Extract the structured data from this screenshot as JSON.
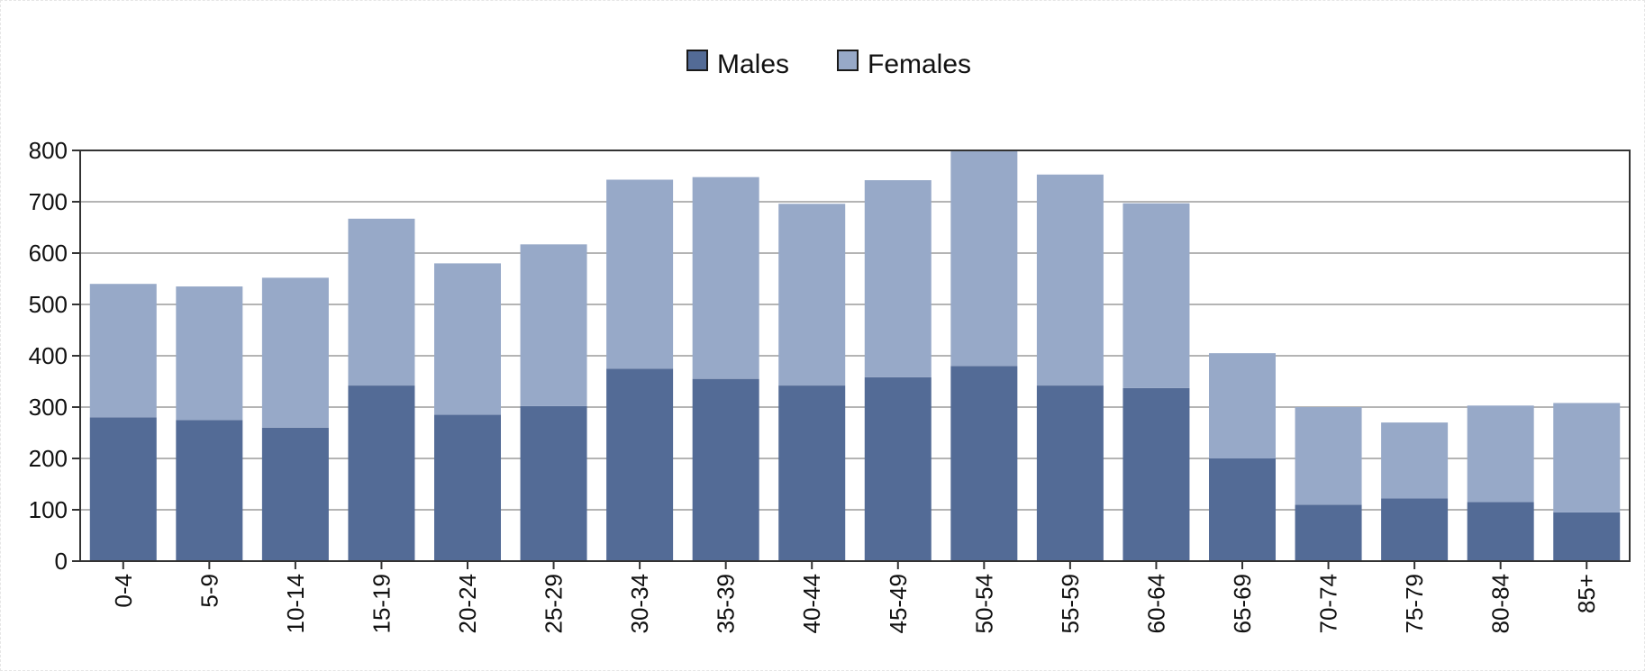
{
  "chart_data": {
    "type": "bar",
    "stacked": true,
    "title": "",
    "xlabel": "",
    "ylabel": "",
    "categories": [
      "0-4",
      "5-9",
      "10-14",
      "15-19",
      "20-24",
      "25-29",
      "30-34",
      "35-39",
      "40-44",
      "45-49",
      "50-54",
      "55-59",
      "60-64",
      "65-69",
      "70-74",
      "75-79",
      "80-84",
      "85+"
    ],
    "series": [
      {
        "name": "Males",
        "color": "#536b96",
        "values": [
          280,
          275,
          260,
          342,
          285,
          302,
          375,
          355,
          342,
          358,
          380,
          342,
          337,
          200,
          110,
          122,
          115,
          95
        ]
      },
      {
        "name": "Females",
        "color": "#97a9c8",
        "values": [
          260,
          260,
          292,
          325,
          295,
          315,
          368,
          393,
          354,
          384,
          420,
          411,
          360,
          205,
          190,
          148,
          188,
          213
        ]
      }
    ],
    "ylim": [
      0,
      800
    ],
    "yticks": [
      0,
      100,
      200,
      300,
      400,
      500,
      600,
      700,
      800
    ],
    "grid": true,
    "legend": "top-center",
    "colors": {
      "grid": "#b4b4b4",
      "axis": "#333333",
      "male": "#536b96",
      "female": "#97a9c8"
    }
  }
}
